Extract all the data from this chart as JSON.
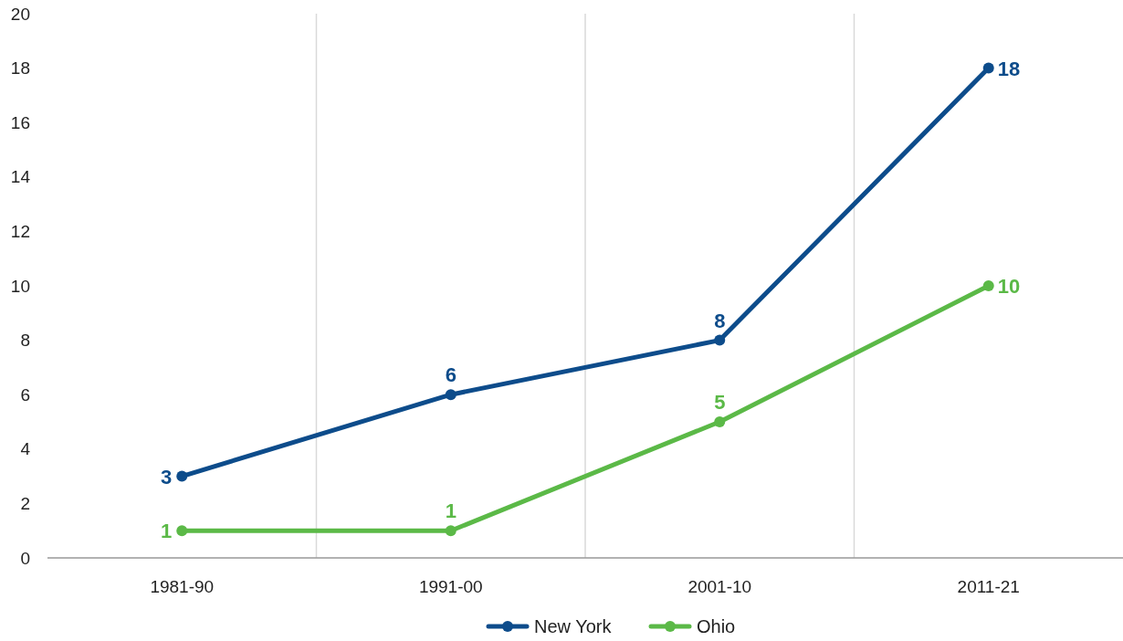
{
  "chart_data": {
    "type": "line",
    "categories": [
      "1981-90",
      "1991-00",
      "2001-10",
      "2011-21"
    ],
    "series": [
      {
        "name": "New York",
        "color": "#0d4c8b",
        "values": [
          3,
          6,
          8,
          18
        ]
      },
      {
        "name": "Ohio",
        "color": "#5bb947",
        "values": [
          1,
          1,
          5,
          10
        ]
      }
    ],
    "ylim": [
      0,
      20
    ],
    "yticks": [
      0,
      2,
      4,
      6,
      8,
      10,
      12,
      14,
      16,
      18,
      20
    ],
    "grid": "x",
    "legend": "bottom",
    "marker": "circle",
    "line_style": "solid",
    "data_labels": true
  }
}
